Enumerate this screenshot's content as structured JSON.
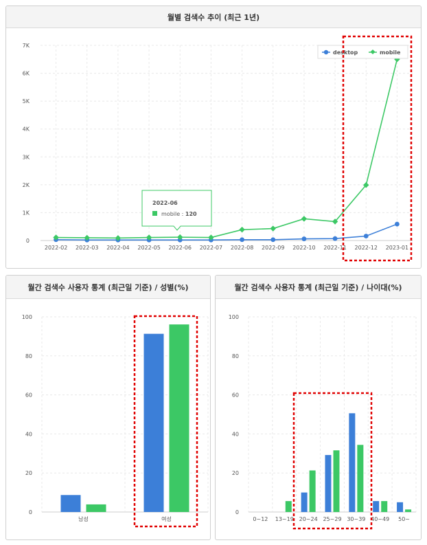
{
  "colors": {
    "desktop": "#3c7fd8",
    "mobile": "#3cc865",
    "highlight": "#e00000",
    "grid": "#e8e8e8"
  },
  "trend": {
    "title": "월별 검색수 추이 (최근 1년)",
    "tooltip": {
      "date": "2022-06",
      "series": "mobile",
      "value": "120"
    },
    "chart_data": {
      "type": "line",
      "x": [
        "2022-02",
        "2022-03",
        "2022-04",
        "2022-05",
        "2022-06",
        "2022-07",
        "2022-08",
        "2022-09",
        "2022-10",
        "2022-11",
        "2022-12",
        "2023-01"
      ],
      "ylim": [
        0,
        7000
      ],
      "yticks": [
        "0",
        "1K",
        "2K",
        "3K",
        "4K",
        "5K",
        "6K",
        "7K"
      ],
      "legend_position": "top-right",
      "series": [
        {
          "name": "desktop",
          "values": [
            30,
            20,
            20,
            20,
            20,
            20,
            30,
            30,
            60,
            70,
            160,
            590
          ]
        },
        {
          "name": "mobile",
          "values": [
            110,
            100,
            90,
            110,
            120,
            110,
            390,
            430,
            780,
            680,
            1990,
            6500
          ]
        }
      ]
    }
  },
  "gender": {
    "title": "월간 검색수 사용자 통계 (최근일 기준) / 성별(%)",
    "chart_data": {
      "type": "bar",
      "categories": [
        "남성",
        "여성"
      ],
      "ylim": [
        0,
        100
      ],
      "yticks": [
        "0",
        "20",
        "40",
        "60",
        "80",
        "100"
      ],
      "series": [
        {
          "name": "desktop",
          "values": [
            8.7,
            91.3
          ]
        },
        {
          "name": "mobile",
          "values": [
            3.9,
            96.1
          ]
        }
      ]
    }
  },
  "age": {
    "title": "월간 검색수 사용자 통계 (최근일 기준) / 나이대(%)",
    "chart_data": {
      "type": "bar",
      "categories": [
        "0~12",
        "13~19",
        "20~24",
        "25~29",
        "30~39",
        "40~49",
        "50~"
      ],
      "ylim": [
        0,
        100
      ],
      "yticks": [
        "0",
        "20",
        "40",
        "60",
        "80",
        "100"
      ],
      "series": [
        {
          "name": "desktop",
          "values": [
            0,
            0,
            10,
            29.2,
            50.6,
            5.6,
            5
          ]
        },
        {
          "name": "mobile",
          "values": [
            0,
            5.6,
            21.3,
            31.6,
            34.4,
            5.6,
            1.3
          ]
        }
      ]
    }
  }
}
